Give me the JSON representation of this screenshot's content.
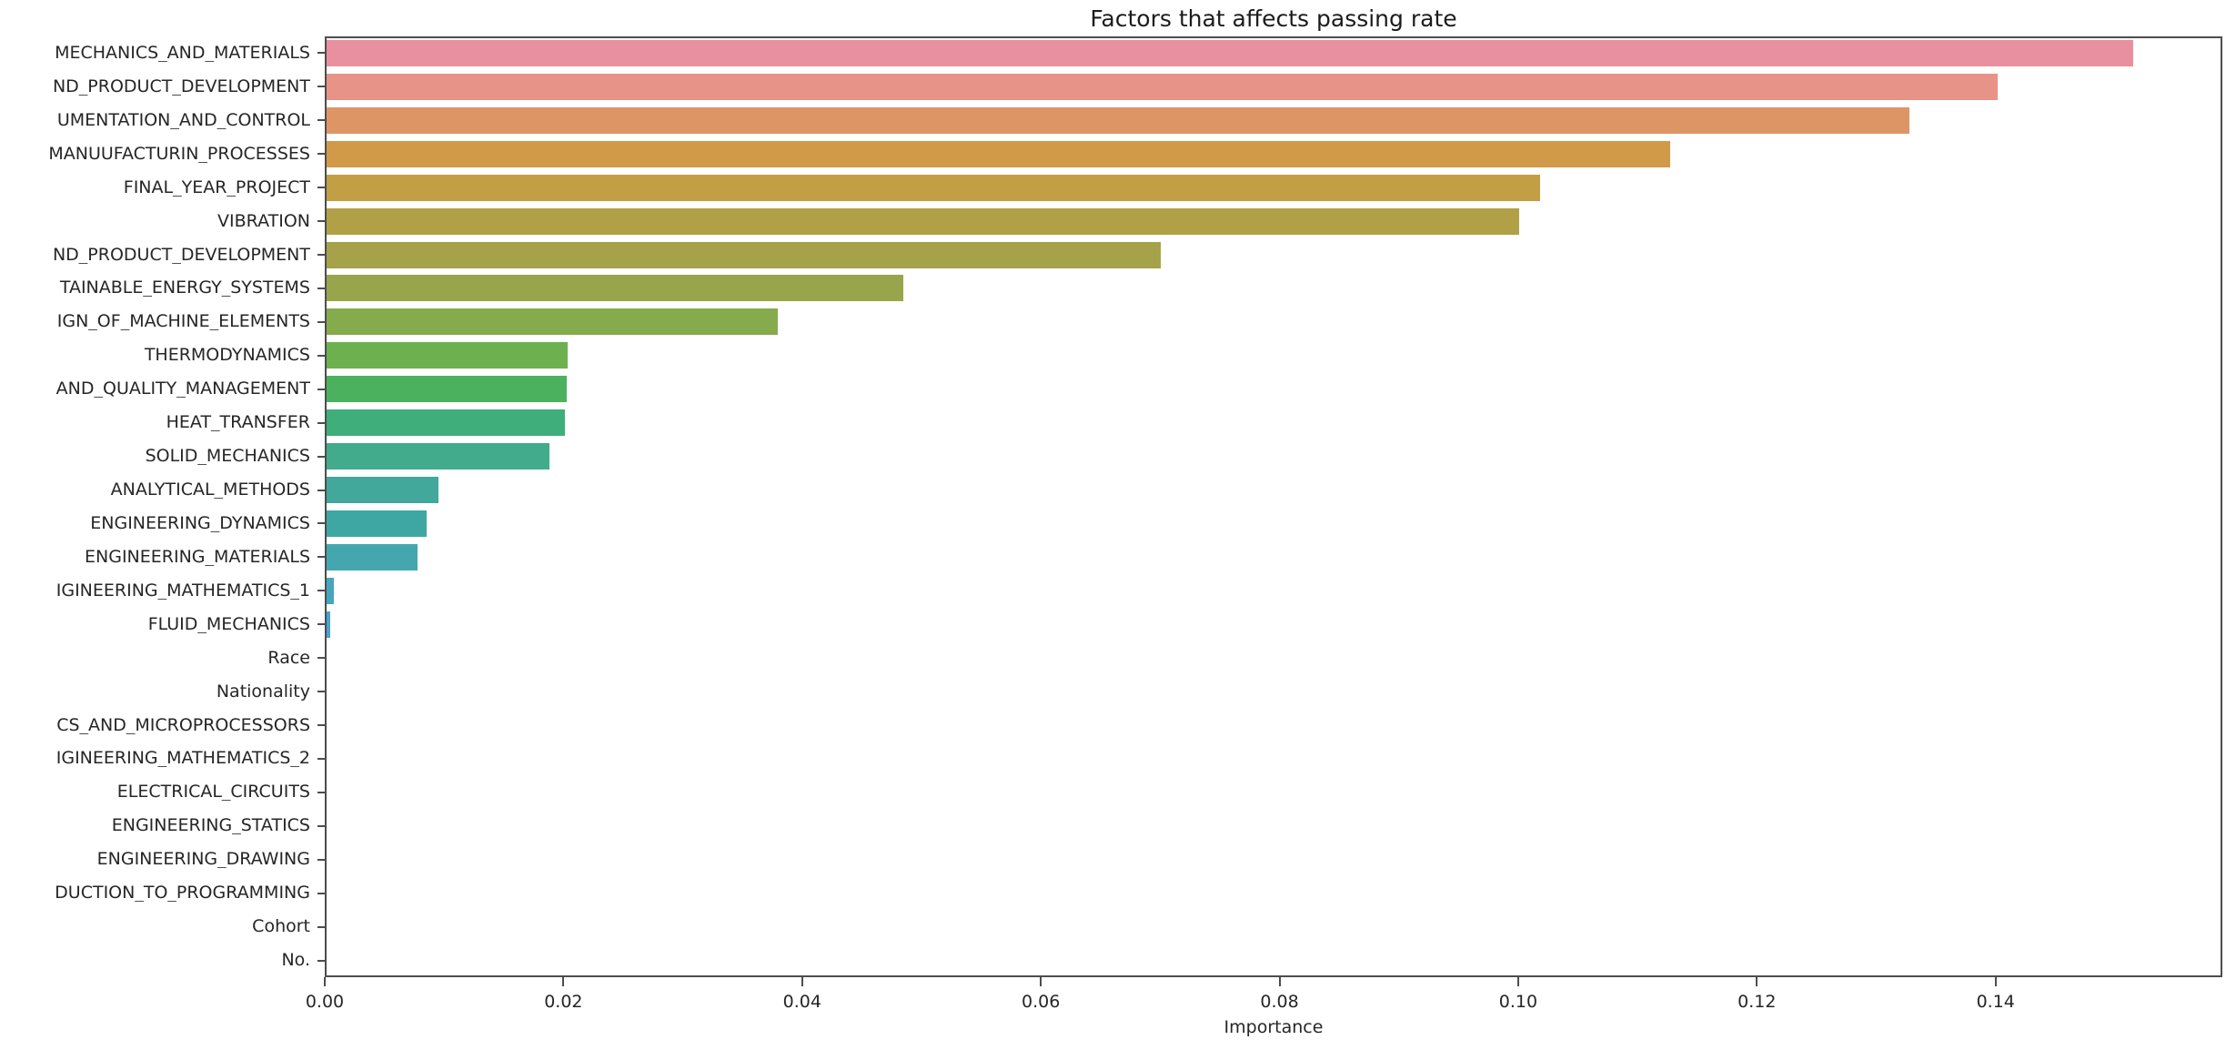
{
  "chart_data": {
    "type": "bar",
    "orientation": "horizontal",
    "title": "Factors that affects passing rate",
    "xlabel": "Importance",
    "ylabel": "",
    "grid": false,
    "legend": false,
    "xlim": [
      0,
      0.159
    ],
    "x_ticks": [
      0.0,
      0.02,
      0.04,
      0.06,
      0.08,
      0.1,
      0.12,
      0.14
    ],
    "x_tick_labels": [
      "0.00",
      "0.02",
      "0.04",
      "0.06",
      "0.08",
      "0.10",
      "0.12",
      "0.14"
    ],
    "categories": [
      "MECHANICS_AND_MATERIALS",
      "ND_PRODUCT_DEVELOPMENT",
      "UMENTATION_AND_CONTROL",
      "MANUUFACTURIN_PROCESSES",
      "FINAL_YEAR_PROJECT",
      "VIBRATION",
      "ND_PRODUCT_DEVELOPMENT",
      "TAINABLE_ENERGY_SYSTEMS",
      "IGN_OF_MACHINE_ELEMENTS",
      "THERMODYNAMICS",
      "AND_QUALITY_MANAGEMENT",
      "HEAT_TRANSFER",
      "SOLID_MECHANICS",
      "ANALYTICAL_METHODS",
      "ENGINEERING_DYNAMICS",
      "ENGINEERING_MATERIALS",
      "IGINEERING_MATHEMATICS_1",
      "FLUID_MECHANICS",
      "Race",
      "Nationality",
      "CS_AND_MICROPROCESSORS",
      "IGINEERING_MATHEMATICS_2",
      "ELECTRICAL_CIRCUITS",
      "ENGINEERING_STATICS",
      "ENGINEERING_DRAWING",
      "DUCTION_TO_PROGRAMMING",
      "Cohort",
      "No."
    ],
    "values": [
      0.1514,
      0.14,
      0.1326,
      0.1126,
      0.1017,
      0.0999,
      0.0699,
      0.0483,
      0.0378,
      0.0202,
      0.0201,
      0.02,
      0.0187,
      0.0094,
      0.0084,
      0.0076,
      0.0006,
      0.0003,
      0.0,
      0.0,
      0.0,
      0.0,
      0.0,
      0.0,
      0.0,
      0.0,
      0.0,
      0.0
    ],
    "bar_colors": [
      "#e8909f",
      "#e79387",
      "#de9566",
      "#d19a48",
      "#c29e45",
      "#b1a046",
      "#a5a249",
      "#99a54a",
      "#85ab4d",
      "#6cb04f",
      "#4bb15f",
      "#3fae7a",
      "#41ab8c",
      "#42a89b",
      "#3fa7a3",
      "#44a7b0",
      "#47a5c0",
      "#4aa2cf",
      "#62a0e0",
      "#8c97ea",
      "#a88ff0",
      "#c084ee",
      "#d47ae4",
      "#e471d2",
      "#ee6fbc",
      "#f470a6",
      "#f57397",
      "#f7758a"
    ],
    "axis_color": "#4d4d4d",
    "text_color": "#262626",
    "background_color": "#ffffff"
  }
}
